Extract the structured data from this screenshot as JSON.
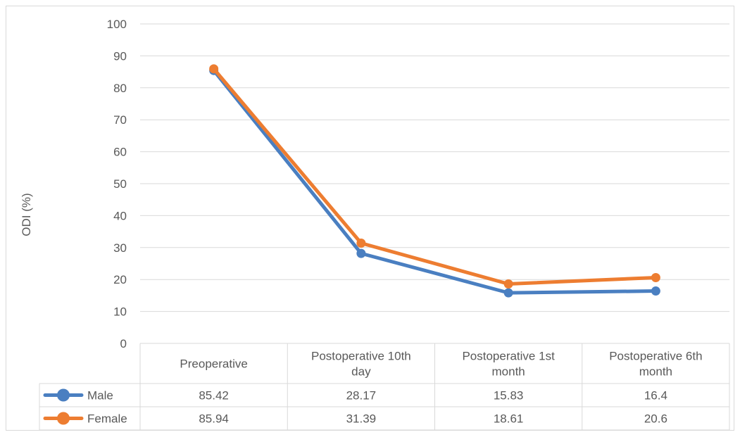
{
  "chart_data": {
    "type": "line",
    "categories": [
      [
        "Preoperative"
      ],
      [
        "Postoperative 10th",
        "day"
      ],
      [
        "Postoperative 1st",
        "month"
      ],
      [
        "Postoperative 6th",
        "month"
      ]
    ],
    "series": [
      {
        "name": "Male",
        "values": [
          85.42,
          28.17,
          15.83,
          16.4
        ],
        "labels": [
          "85.42",
          "28.17",
          "15.83",
          "16.4"
        ],
        "color": "#4a7fc1"
      },
      {
        "name": "Female",
        "values": [
          85.94,
          31.39,
          18.61,
          20.6
        ],
        "labels": [
          "85.94",
          "31.39",
          "18.61",
          "20.6"
        ],
        "color": "#ed7d31"
      }
    ],
    "ylabel": "ODI (%)",
    "ylim": [
      0,
      100
    ],
    "yticks": [
      "0",
      "10",
      "20",
      "30",
      "40",
      "50",
      "60",
      "70",
      "80",
      "90",
      "100"
    ],
    "grid": true,
    "legend": "data table"
  }
}
